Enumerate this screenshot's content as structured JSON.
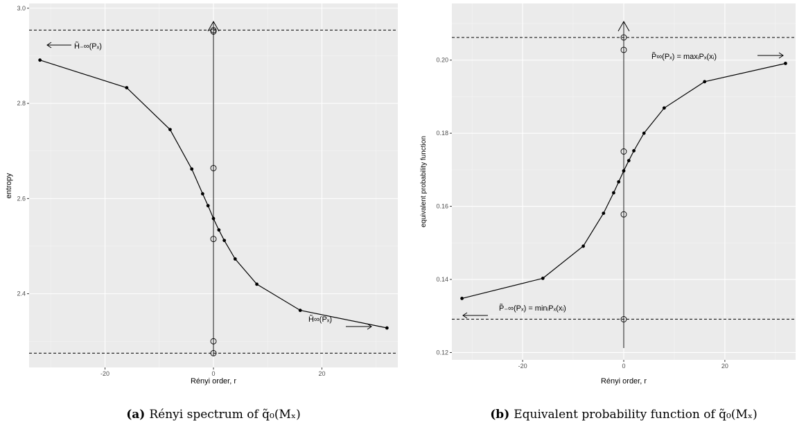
{
  "chart_data": [
    {
      "type": "line",
      "xlabel": "Rényi order, r",
      "ylabel": "entropy",
      "xlim": [
        -34,
        34
      ],
      "ylim": [
        2.245,
        3.01
      ],
      "x_ticks": [
        -20,
        0,
        20
      ],
      "x_tick_labels": [
        "-20",
        "0",
        "20"
      ],
      "y_ticks": [
        2.4,
        2.6,
        2.8,
        3.0
      ],
      "y_tick_labels": [
        "2.4",
        "2.6",
        "2.8",
        "3.0"
      ],
      "grid": true,
      "series": [
        {
          "x": [
            -32,
            -16,
            -8,
            -4,
            -2,
            -1,
            0,
            1,
            2,
            4,
            8,
            16,
            32
          ],
          "y": [
            2.891,
            2.833,
            2.745,
            2.662,
            2.61,
            2.585,
            2.558,
            2.534,
            2.512,
            2.473,
            2.42,
            2.365,
            2.328
          ]
        }
      ],
      "open_points": {
        "x": [
          0,
          0,
          0,
          0,
          0,
          0
        ],
        "y": [
          2.954,
          2.951,
          2.664,
          2.515,
          2.3,
          2.275
        ]
      },
      "reference_lines": [
        2.954,
        2.275
      ],
      "vertical_axis_arrow_x": 0,
      "annotations": [
        {
          "text": "H̃₋∞(Pₓ)",
          "arrow": "left",
          "near": "top-left"
        },
        {
          "text": "H̃∞(Pₓ)",
          "arrow": "right",
          "near": "bottom-right"
        }
      ],
      "caption_label": "(a)",
      "caption_text": "Rényi spectrum of q̃₀(Mₓ)"
    },
    {
      "type": "line",
      "xlabel": "Rényi order, r",
      "ylabel": "equivalent probability function",
      "xlim": [
        -34,
        34
      ],
      "ylim": [
        0.118,
        0.2155
      ],
      "x_ticks": [
        -20,
        0,
        20
      ],
      "x_tick_labels": [
        "-20",
        "0",
        "20"
      ],
      "y_ticks": [
        0.12,
        0.14,
        0.16,
        0.18,
        0.2
      ],
      "y_tick_labels": [
        "0.12",
        "0.14",
        "0.16",
        "0.18",
        "0.20"
      ],
      "grid": true,
      "series": [
        {
          "x": [
            -32,
            -16,
            -8,
            -4,
            -2,
            -1,
            0,
            1,
            2,
            4,
            8,
            16,
            32
          ],
          "y": [
            0.1348,
            0.1403,
            0.1491,
            0.1581,
            0.1637,
            0.1667,
            0.1697,
            0.1725,
            0.1752,
            0.18,
            0.1869,
            0.1941,
            0.1991
          ]
        }
      ],
      "open_points": {
        "x": [
          0,
          0,
          0,
          0,
          0
        ],
        "y": [
          0.2062,
          0.2028,
          0.175,
          0.1578,
          0.1291
        ]
      },
      "reference_lines": [
        0.2062,
        0.1291
      ],
      "vertical_axis_arrow_x": 0,
      "annotations": [
        {
          "text": "P̃∞(Pₓ) = maxᵢPₓ(xᵢ)",
          "arrow": "right",
          "near": "top-right"
        },
        {
          "text": "P̃₋∞(Pₓ) = minᵢPₓ(xᵢ)",
          "arrow": "left",
          "near": "bottom-left"
        }
      ],
      "caption_label": "(b)",
      "caption_text": "Equivalent probability function of q̃₀(Mₓ)"
    }
  ]
}
